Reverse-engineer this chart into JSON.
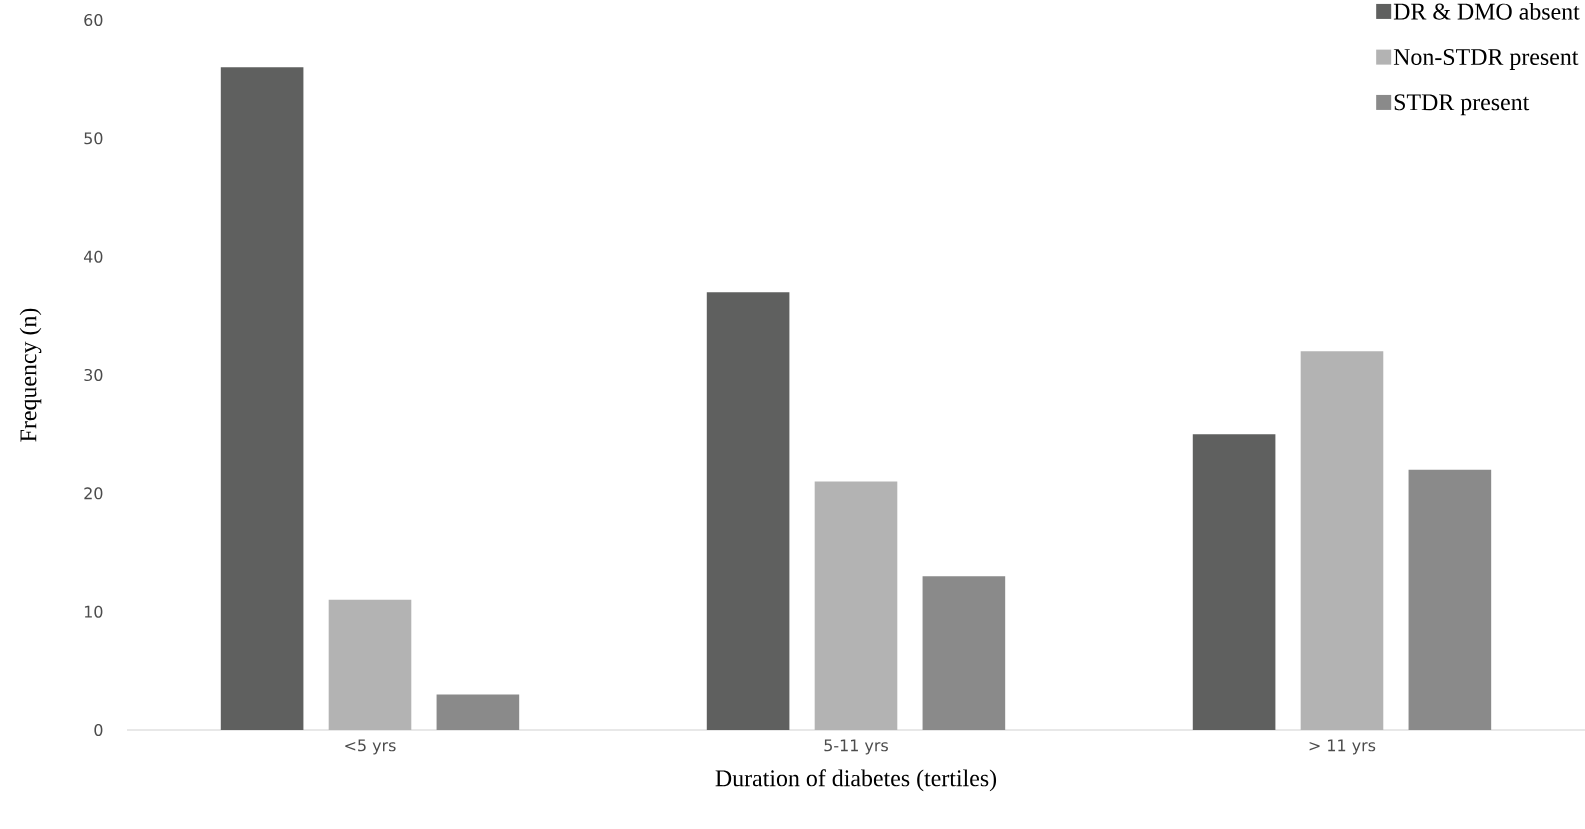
{
  "chart_data": {
    "type": "bar",
    "categories": [
      "<5 yrs",
      "5-11 yrs",
      "> 11 yrs"
    ],
    "series": [
      {
        "name": "DR & DMO absent",
        "color": "#5f605f",
        "values": [
          56,
          37,
          25
        ]
      },
      {
        "name": "Non-STDR present",
        "color": "#b3b3b3",
        "values": [
          11,
          21,
          32
        ]
      },
      {
        "name": "STDR present",
        "color": "#8a8a8a",
        "values": [
          3,
          13,
          22
        ]
      }
    ],
    "xlabel": "Duration of diabetes (tertiles)",
    "ylabel": "Frequency (n)",
    "ylim": [
      0,
      60
    ],
    "yticks": [
      0,
      10,
      20,
      30,
      40,
      50,
      60
    ],
    "legend": "top right"
  }
}
